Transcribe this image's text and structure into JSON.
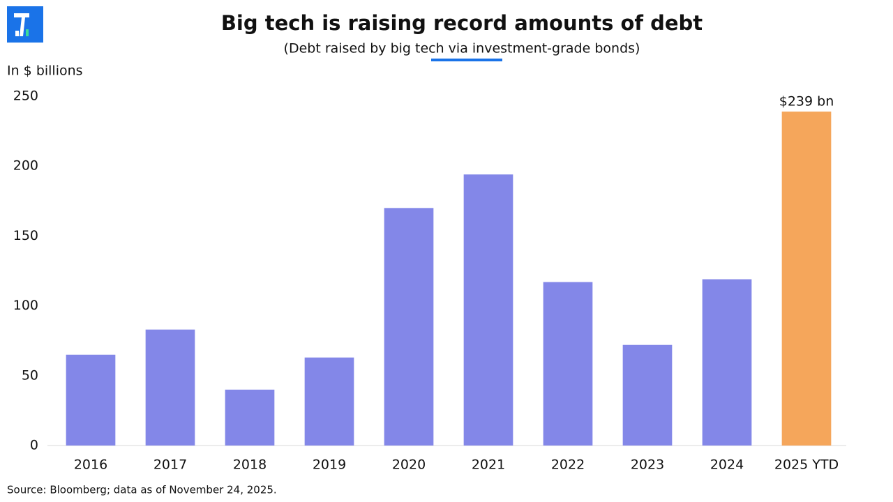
{
  "chart_data": {
    "type": "bar",
    "title": "Big tech is raising record amounts of debt",
    "subtitle": "(Debt raised by big tech via investment-grade bonds)",
    "y_label": "In $ billions",
    "source": "Source: Bloomberg; data as of November 24, 2025.",
    "categories": [
      "2016",
      "2017",
      "2018",
      "2019",
      "2020",
      "2021",
      "2022",
      "2023",
      "2024",
      "2025 YTD"
    ],
    "values": [
      65,
      83,
      40,
      63,
      170,
      194,
      117,
      72,
      119,
      239
    ],
    "value_labels": [
      null,
      null,
      null,
      null,
      null,
      null,
      null,
      null,
      null,
      "$239 bn"
    ],
    "colors": [
      "#8387e8",
      "#8387e8",
      "#8387e8",
      "#8387e8",
      "#8387e8",
      "#8387e8",
      "#8387e8",
      "#8387e8",
      "#8387e8",
      "#f5a65b"
    ],
    "ylim": [
      0,
      250
    ],
    "yticks": [
      0,
      50,
      100,
      150,
      200,
      250
    ],
    "grid": false
  }
}
